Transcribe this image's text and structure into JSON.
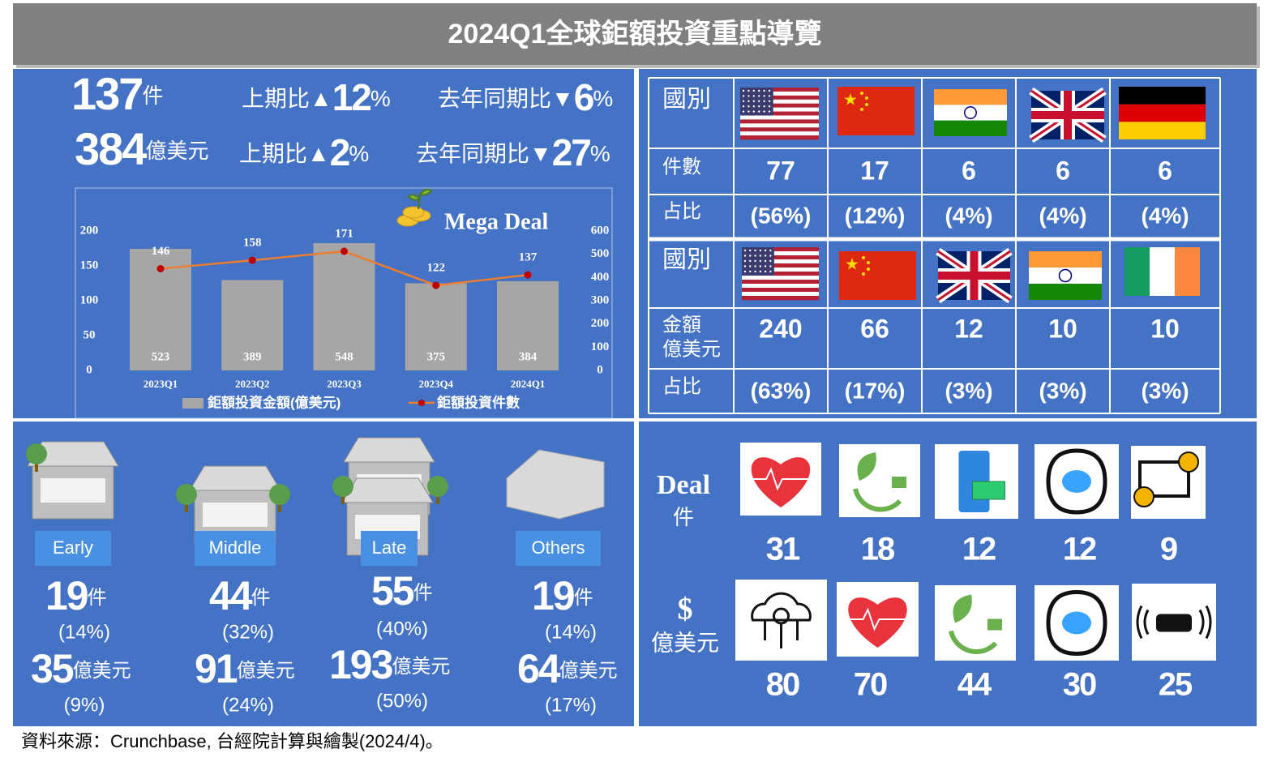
{
  "title": "2024Q1全球鉅額投資重點導覽",
  "summary": [
    {
      "value": 137,
      "unit": "件",
      "qoq_label": "上期比▲",
      "qoq": 12,
      "qoq_unit": "%",
      "yoy_label": "去年同期比▼",
      "yoy": 6,
      "yoy_unit": "%"
    },
    {
      "value": 384,
      "unit": "億美元",
      "qoq_label": "上期比▲",
      "qoq": 2,
      "qoq_unit": "%",
      "yoy_label": "去年同期比▼",
      "yoy": 27,
      "yoy_unit": "%"
    }
  ],
  "chart_data": {
    "type": "bar",
    "annotation": "Mega Deal",
    "categories": [
      "2023Q1",
      "2023Q2",
      "2023Q3",
      "2023Q4",
      "2024Q1"
    ],
    "series": [
      {
        "name": "鉅額投資金額(億美元)",
        "type": "bar",
        "color": "#a6a6a6",
        "axis": "y2",
        "values": [
          523,
          389,
          548,
          375,
          384
        ]
      },
      {
        "name": "鉅額投資件數",
        "type": "line",
        "color": "#ed7d31",
        "values": [
          146,
          158,
          171,
          122,
          137
        ]
      }
    ],
    "ylim": [
      0,
      200
    ],
    "yticks": [
      0,
      50,
      100,
      150,
      200
    ],
    "y2lim": [
      0,
      600
    ],
    "y2ticks": [
      0,
      100,
      200,
      300,
      400,
      500,
      600
    ],
    "grid": false
  },
  "by_country": {
    "deals": {
      "header": "國別",
      "count_label": "件數",
      "counts": [
        77,
        17,
        6,
        6,
        6
      ],
      "share_label": "占比",
      "shares": [
        "(56%)",
        "(12%)",
        "(4%)",
        "(4%)",
        "(4%)"
      ]
    },
    "amounts": {
      "header": "國別",
      "amount_label": [
        "金額",
        "億美元"
      ],
      "amounts": [
        240,
        66,
        12,
        10,
        10
      ],
      "share_label": "占比",
      "shares": [
        "(63%)",
        "(17%)",
        "(3%)",
        "(3%)",
        "(3%)"
      ]
    }
  },
  "stages": [
    {
      "label": "Early",
      "count": 19,
      "count_unit": "件",
      "count_share": "(14%)",
      "amount": 35,
      "amount_unit": "億美元",
      "amount_share": "(9%)"
    },
    {
      "label": "Middle",
      "count": 44,
      "count_unit": "件",
      "count_share": "(32%)",
      "amount": 91,
      "amount_unit": "億美元",
      "amount_share": "(24%)"
    },
    {
      "label": "Late",
      "count": 55,
      "count_unit": "件",
      "count_share": "(40%)",
      "amount": 193,
      "amount_unit": "億美元",
      "amount_share": "(50%)"
    },
    {
      "label": "Others",
      "count": 19,
      "count_unit": "件",
      "count_share": "(14%)",
      "amount": 64,
      "amount_unit": "億美元",
      "amount_share": "(17%)"
    }
  ],
  "sectors": {
    "deal_label": "Deal",
    "deal_unit": "件",
    "deals": [
      31,
      18,
      12,
      12,
      9
    ],
    "amount_label": "$",
    "amount_unit": "億美元",
    "amounts": [
      80,
      70,
      44,
      30,
      25
    ]
  },
  "source": "資料來源：Crunchbase, 台經院計算與繪製(2024/4)。"
}
